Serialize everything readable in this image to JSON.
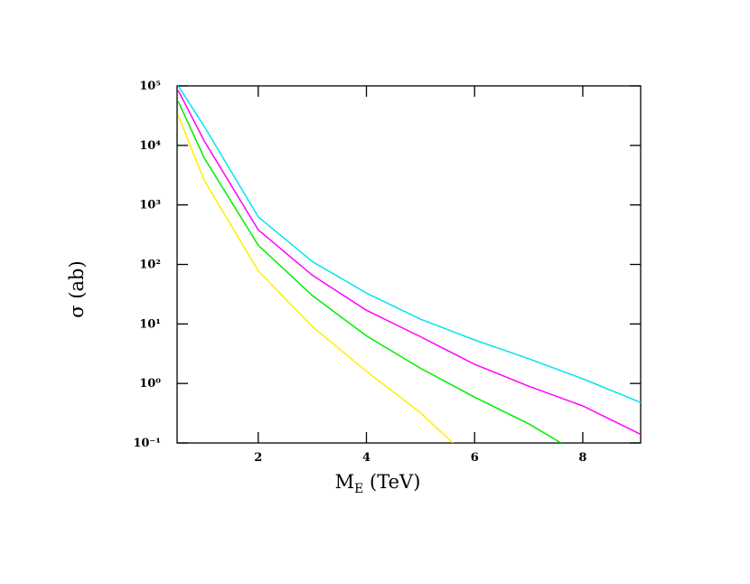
{
  "chart_data": {
    "type": "line",
    "y_label": "σ (ab)",
    "x_label_parts": [
      "M",
      "E",
      " (TeV)"
    ],
    "log_y": true,
    "xlim": [
      0.5,
      9.07
    ],
    "xticks": [
      2,
      4,
      6,
      8
    ],
    "ylim": [
      0.1,
      100000
    ],
    "yticks": [
      {
        "value": 0.1,
        "label": "10⁻¹"
      },
      {
        "value": 1,
        "label": "10⁰"
      },
      {
        "value": 10,
        "label": "10¹"
      },
      {
        "value": 100,
        "label": "10²"
      },
      {
        "value": 1000,
        "label": "10³"
      },
      {
        "value": 10000,
        "label": "10⁴"
      },
      {
        "value": 100000,
        "label": "10⁵"
      }
    ],
    "series": [
      {
        "color": "#00e5ee",
        "x": [
          0.52,
          1,
          2,
          3,
          4,
          5,
          6,
          7,
          8,
          9.07
        ],
        "values": [
          100000,
          21000,
          630,
          112,
          33,
          12,
          5.4,
          2.6,
          1.2,
          0.48
        ]
      },
      {
        "color": "#ff00ff",
        "x": [
          0.52,
          1,
          2,
          3,
          4,
          5,
          6,
          7,
          8,
          9.07
        ],
        "values": [
          84000,
          12000,
          380,
          66,
          17,
          6.1,
          2.1,
          0.9,
          0.42,
          0.14
        ]
      },
      {
        "color": "#00ee00",
        "x": [
          0.52,
          1,
          2,
          3,
          4,
          5,
          6,
          7,
          7.6
        ],
        "values": [
          55000,
          6200,
          210,
          30,
          6.3,
          1.8,
          0.59,
          0.21,
          0.1
        ]
      },
      {
        "color": "#ffee00",
        "x": [
          0.52,
          1,
          2,
          3,
          4,
          5,
          5.6
        ],
        "values": [
          32000,
          2600,
          78,
          9,
          1.6,
          0.32,
          0.1
        ]
      }
    ]
  }
}
